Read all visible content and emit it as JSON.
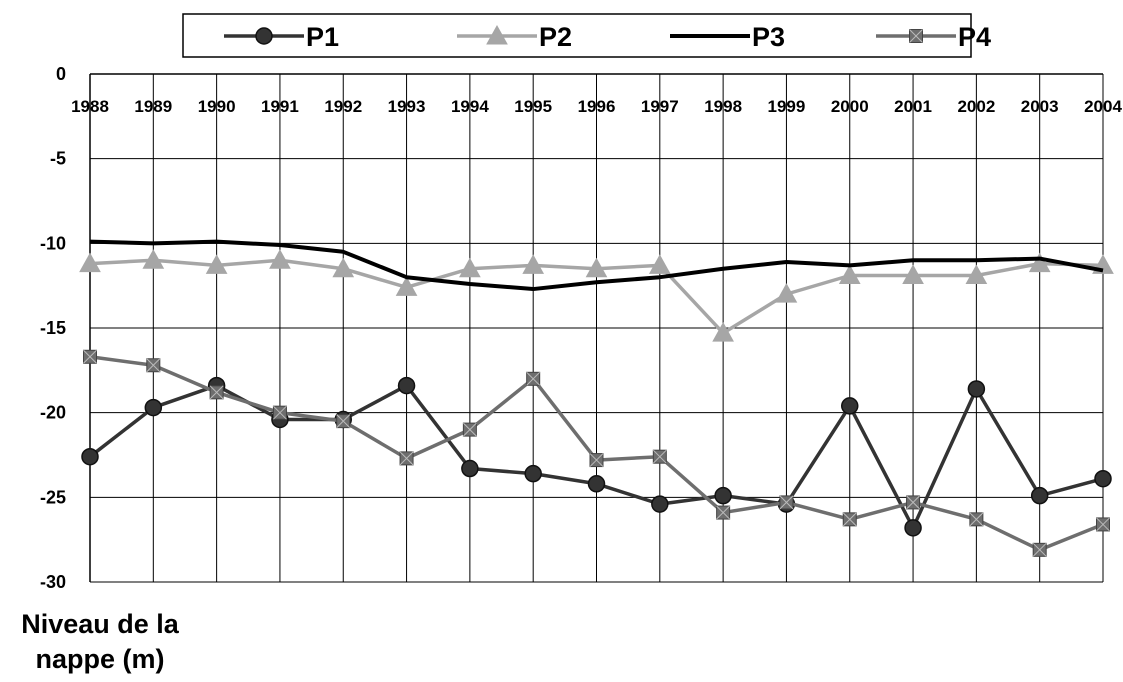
{
  "chart_data": {
    "type": "line",
    "title": "",
    "xlabel": "",
    "ylabel_lines": [
      "Niveau de la",
      "nappe (m)"
    ],
    "categories": [
      "1988",
      "1989",
      "1990",
      "1991",
      "1992",
      "1993",
      "1994",
      "1995",
      "1996",
      "1997",
      "1998",
      "1999",
      "2000",
      "2001",
      "2002",
      "2003",
      "2004"
    ],
    "y_ticks": [
      0,
      -5,
      -10,
      -15,
      -20,
      -25,
      -30
    ],
    "ylim": [
      -30,
      0
    ],
    "grid": true,
    "legend_position": "top",
    "series": [
      {
        "name": "P1",
        "color": "#333333",
        "marker": "circle",
        "values": [
          -22.6,
          -19.7,
          -18.4,
          -20.4,
          -20.4,
          -18.4,
          -23.3,
          -23.6,
          -24.2,
          -25.4,
          -24.9,
          -25.4,
          -19.6,
          -26.8,
          -18.6,
          -24.9,
          -23.9
        ]
      },
      {
        "name": "P2",
        "color": "#a6a6a6",
        "marker": "triangle",
        "values": [
          -11.2,
          -11.0,
          -11.3,
          -11.0,
          -11.5,
          -12.6,
          -11.5,
          -11.3,
          -11.5,
          -11.3,
          -15.3,
          -13.0,
          -11.9,
          -11.9,
          -11.9,
          -11.2,
          -11.3
        ]
      },
      {
        "name": "P3",
        "color": "#000000",
        "marker": "none",
        "values": [
          -9.9,
          -10.0,
          -9.9,
          -10.1,
          -10.5,
          -12.0,
          -12.4,
          -12.7,
          -12.3,
          -12.0,
          -11.5,
          -11.1,
          -11.3,
          -11.0,
          -11.0,
          -10.9,
          -11.6
        ]
      },
      {
        "name": "P4",
        "color": "#6e6e6e",
        "marker": "square-x",
        "values": [
          -16.7,
          -17.2,
          -18.8,
          -20.0,
          -20.5,
          -22.7,
          -21.0,
          -18.0,
          -22.8,
          -22.6,
          -25.9,
          -25.3,
          -26.3,
          -25.3,
          -26.3,
          -28.1,
          -26.6
        ]
      }
    ]
  }
}
